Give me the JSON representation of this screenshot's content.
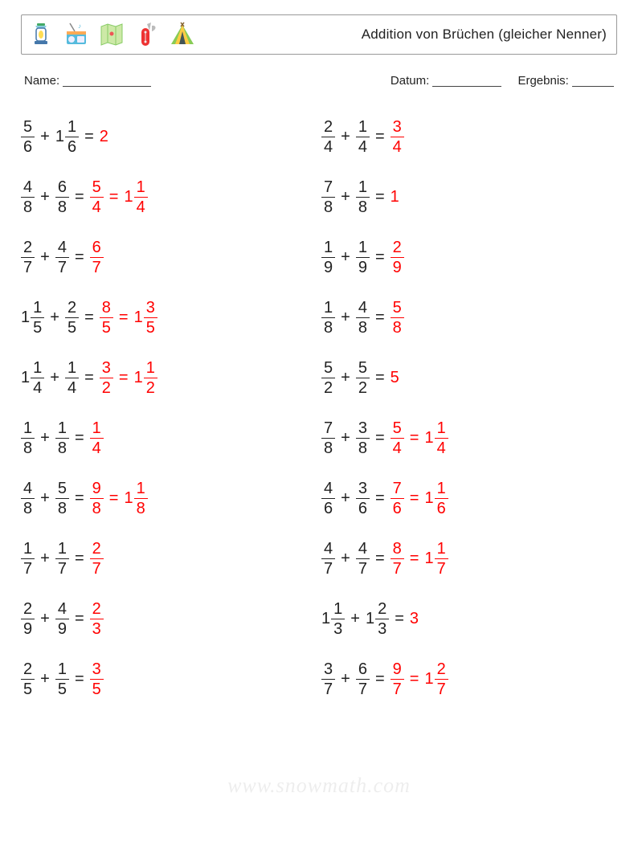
{
  "header": {
    "title": "Addition von Brüchen (gleicher Nenner)",
    "icons": [
      "lantern-icon",
      "radio-icon",
      "map-icon",
      "swiss-knife-icon",
      "tent-icon"
    ]
  },
  "meta": {
    "name_label": "Name:",
    "date_label": "Datum:",
    "score_label": "Ergebnis:"
  },
  "watermark": "www.snowmath.com",
  "colors": {
    "answer": "#ff0000",
    "text": "#222222",
    "border": "#999999",
    "background": "#ffffff"
  },
  "problems_left": [
    {
      "a": {
        "type": "frac",
        "n": 5,
        "d": 6
      },
      "b": {
        "type": "mixed",
        "w": 1,
        "n": 1,
        "d": 6
      },
      "answers": [
        {
          "type": "int",
          "v": 2
        }
      ]
    },
    {
      "a": {
        "type": "frac",
        "n": 4,
        "d": 8
      },
      "b": {
        "type": "frac",
        "n": 6,
        "d": 8
      },
      "answers": [
        {
          "type": "frac",
          "n": 5,
          "d": 4
        },
        {
          "type": "mixed",
          "w": 1,
          "n": 1,
          "d": 4
        }
      ]
    },
    {
      "a": {
        "type": "frac",
        "n": 2,
        "d": 7
      },
      "b": {
        "type": "frac",
        "n": 4,
        "d": 7
      },
      "answers": [
        {
          "type": "frac",
          "n": 6,
          "d": 7
        }
      ]
    },
    {
      "a": {
        "type": "mixed",
        "w": 1,
        "n": 1,
        "d": 5
      },
      "b": {
        "type": "frac",
        "n": 2,
        "d": 5
      },
      "answers": [
        {
          "type": "frac",
          "n": 8,
          "d": 5
        },
        {
          "type": "mixed",
          "w": 1,
          "n": 3,
          "d": 5
        }
      ]
    },
    {
      "a": {
        "type": "mixed",
        "w": 1,
        "n": 1,
        "d": 4
      },
      "b": {
        "type": "frac",
        "n": 1,
        "d": 4
      },
      "answers": [
        {
          "type": "frac",
          "n": 3,
          "d": 2
        },
        {
          "type": "mixed",
          "w": 1,
          "n": 1,
          "d": 2
        }
      ]
    },
    {
      "a": {
        "type": "frac",
        "n": 1,
        "d": 8
      },
      "b": {
        "type": "frac",
        "n": 1,
        "d": 8
      },
      "answers": [
        {
          "type": "frac",
          "n": 1,
          "d": 4
        }
      ]
    },
    {
      "a": {
        "type": "frac",
        "n": 4,
        "d": 8
      },
      "b": {
        "type": "frac",
        "n": 5,
        "d": 8
      },
      "answers": [
        {
          "type": "frac",
          "n": 9,
          "d": 8
        },
        {
          "type": "mixed",
          "w": 1,
          "n": 1,
          "d": 8
        }
      ]
    },
    {
      "a": {
        "type": "frac",
        "n": 1,
        "d": 7
      },
      "b": {
        "type": "frac",
        "n": 1,
        "d": 7
      },
      "answers": [
        {
          "type": "frac",
          "n": 2,
          "d": 7
        }
      ]
    },
    {
      "a": {
        "type": "frac",
        "n": 2,
        "d": 9
      },
      "b": {
        "type": "frac",
        "n": 4,
        "d": 9
      },
      "answers": [
        {
          "type": "frac",
          "n": 2,
          "d": 3
        }
      ]
    },
    {
      "a": {
        "type": "frac",
        "n": 2,
        "d": 5
      },
      "b": {
        "type": "frac",
        "n": 1,
        "d": 5
      },
      "answers": [
        {
          "type": "frac",
          "n": 3,
          "d": 5
        }
      ]
    }
  ],
  "problems_right": [
    {
      "a": {
        "type": "frac",
        "n": 2,
        "d": 4
      },
      "b": {
        "type": "frac",
        "n": 1,
        "d": 4
      },
      "answers": [
        {
          "type": "frac",
          "n": 3,
          "d": 4
        }
      ]
    },
    {
      "a": {
        "type": "frac",
        "n": 7,
        "d": 8
      },
      "b": {
        "type": "frac",
        "n": 1,
        "d": 8
      },
      "answers": [
        {
          "type": "int",
          "v": 1
        }
      ]
    },
    {
      "a": {
        "type": "frac",
        "n": 1,
        "d": 9
      },
      "b": {
        "type": "frac",
        "n": 1,
        "d": 9
      },
      "answers": [
        {
          "type": "frac",
          "n": 2,
          "d": 9
        }
      ]
    },
    {
      "a": {
        "type": "frac",
        "n": 1,
        "d": 8
      },
      "b": {
        "type": "frac",
        "n": 4,
        "d": 8
      },
      "answers": [
        {
          "type": "frac",
          "n": 5,
          "d": 8
        }
      ]
    },
    {
      "a": {
        "type": "frac",
        "n": 5,
        "d": 2
      },
      "b": {
        "type": "frac",
        "n": 5,
        "d": 2
      },
      "answers": [
        {
          "type": "int",
          "v": 5
        }
      ]
    },
    {
      "a": {
        "type": "frac",
        "n": 7,
        "d": 8
      },
      "b": {
        "type": "frac",
        "n": 3,
        "d": 8
      },
      "answers": [
        {
          "type": "frac",
          "n": 5,
          "d": 4
        },
        {
          "type": "mixed",
          "w": 1,
          "n": 1,
          "d": 4
        }
      ]
    },
    {
      "a": {
        "type": "frac",
        "n": 4,
        "d": 6
      },
      "b": {
        "type": "frac",
        "n": 3,
        "d": 6
      },
      "answers": [
        {
          "type": "frac",
          "n": 7,
          "d": 6
        },
        {
          "type": "mixed",
          "w": 1,
          "n": 1,
          "d": 6
        }
      ]
    },
    {
      "a": {
        "type": "frac",
        "n": 4,
        "d": 7
      },
      "b": {
        "type": "frac",
        "n": 4,
        "d": 7
      },
      "answers": [
        {
          "type": "frac",
          "n": 8,
          "d": 7
        },
        {
          "type": "mixed",
          "w": 1,
          "n": 1,
          "d": 7
        }
      ]
    },
    {
      "a": {
        "type": "mixed",
        "w": 1,
        "n": 1,
        "d": 3
      },
      "b": {
        "type": "mixed",
        "w": 1,
        "n": 2,
        "d": 3
      },
      "answers": [
        {
          "type": "int",
          "v": 3
        }
      ]
    },
    {
      "a": {
        "type": "frac",
        "n": 3,
        "d": 7
      },
      "b": {
        "type": "frac",
        "n": 6,
        "d": 7
      },
      "answers": [
        {
          "type": "frac",
          "n": 9,
          "d": 7
        },
        {
          "type": "mixed",
          "w": 1,
          "n": 2,
          "d": 7
        }
      ]
    }
  ]
}
